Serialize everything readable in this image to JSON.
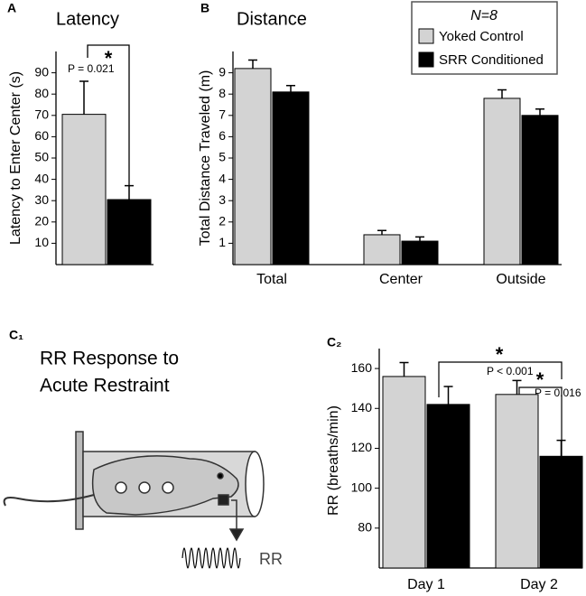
{
  "chart_data": [
    {
      "type": "bar",
      "panel_label": "A",
      "title": "Latency",
      "y_label": "Latency to Enter Center (s)",
      "ylim": [
        0,
        100
      ],
      "yticks": [
        10,
        20,
        30,
        40,
        50,
        60,
        70,
        80,
        90
      ],
      "series": [
        {
          "color": "#d3d3d3",
          "values": [
            70.5
          ],
          "errors": [
            15.5
          ]
        },
        {
          "color": "#000000",
          "values": [
            30.5
          ],
          "errors": [
            6.5
          ]
        }
      ],
      "annotations": [
        "P = 0.021",
        "*"
      ]
    },
    {
      "type": "bar",
      "panel_label": "B",
      "title": "Distance",
      "y_label": "Total Distance Traveled (m)",
      "categories": [
        "Total",
        "Center",
        "Outside"
      ],
      "ylim": [
        0,
        10
      ],
      "yticks": [
        1,
        2,
        3,
        4,
        5,
        6,
        7,
        8,
        9
      ],
      "legend_title": "N=8",
      "legend_position": "upper right",
      "series": [
        {
          "name": "Yoked Control",
          "color": "#d3d3d3",
          "values": [
            9.2,
            1.4,
            7.8
          ],
          "errors": [
            0.4,
            0.2,
            0.4
          ]
        },
        {
          "name": "SRR Conditioned",
          "color": "#000000",
          "values": [
            8.1,
            1.1,
            7.0
          ],
          "errors": [
            0.3,
            0.2,
            0.3
          ]
        }
      ]
    },
    {
      "type": "bar",
      "panel_label": "C₂",
      "y_label": "RR (breaths/min)",
      "categories": [
        "Day 1",
        "Day 2"
      ],
      "ylim": [
        60,
        170
      ],
      "yticks": [
        80,
        100,
        120,
        140,
        160
      ],
      "series": [
        {
          "color": "#d3d3d3",
          "values": [
            156,
            147
          ],
          "errors": [
            7,
            7
          ]
        },
        {
          "color": "#000000",
          "values": [
            142,
            116
          ],
          "errors": [
            9,
            8
          ]
        }
      ],
      "annotations": [
        "*",
        "P < 0.001",
        "*",
        "P = 0.016"
      ]
    }
  ],
  "diagram": {
    "panel_label": "C₁",
    "title_lines": [
      "RR Response to",
      "Acute Restraint"
    ],
    "signal_label": "RR"
  }
}
